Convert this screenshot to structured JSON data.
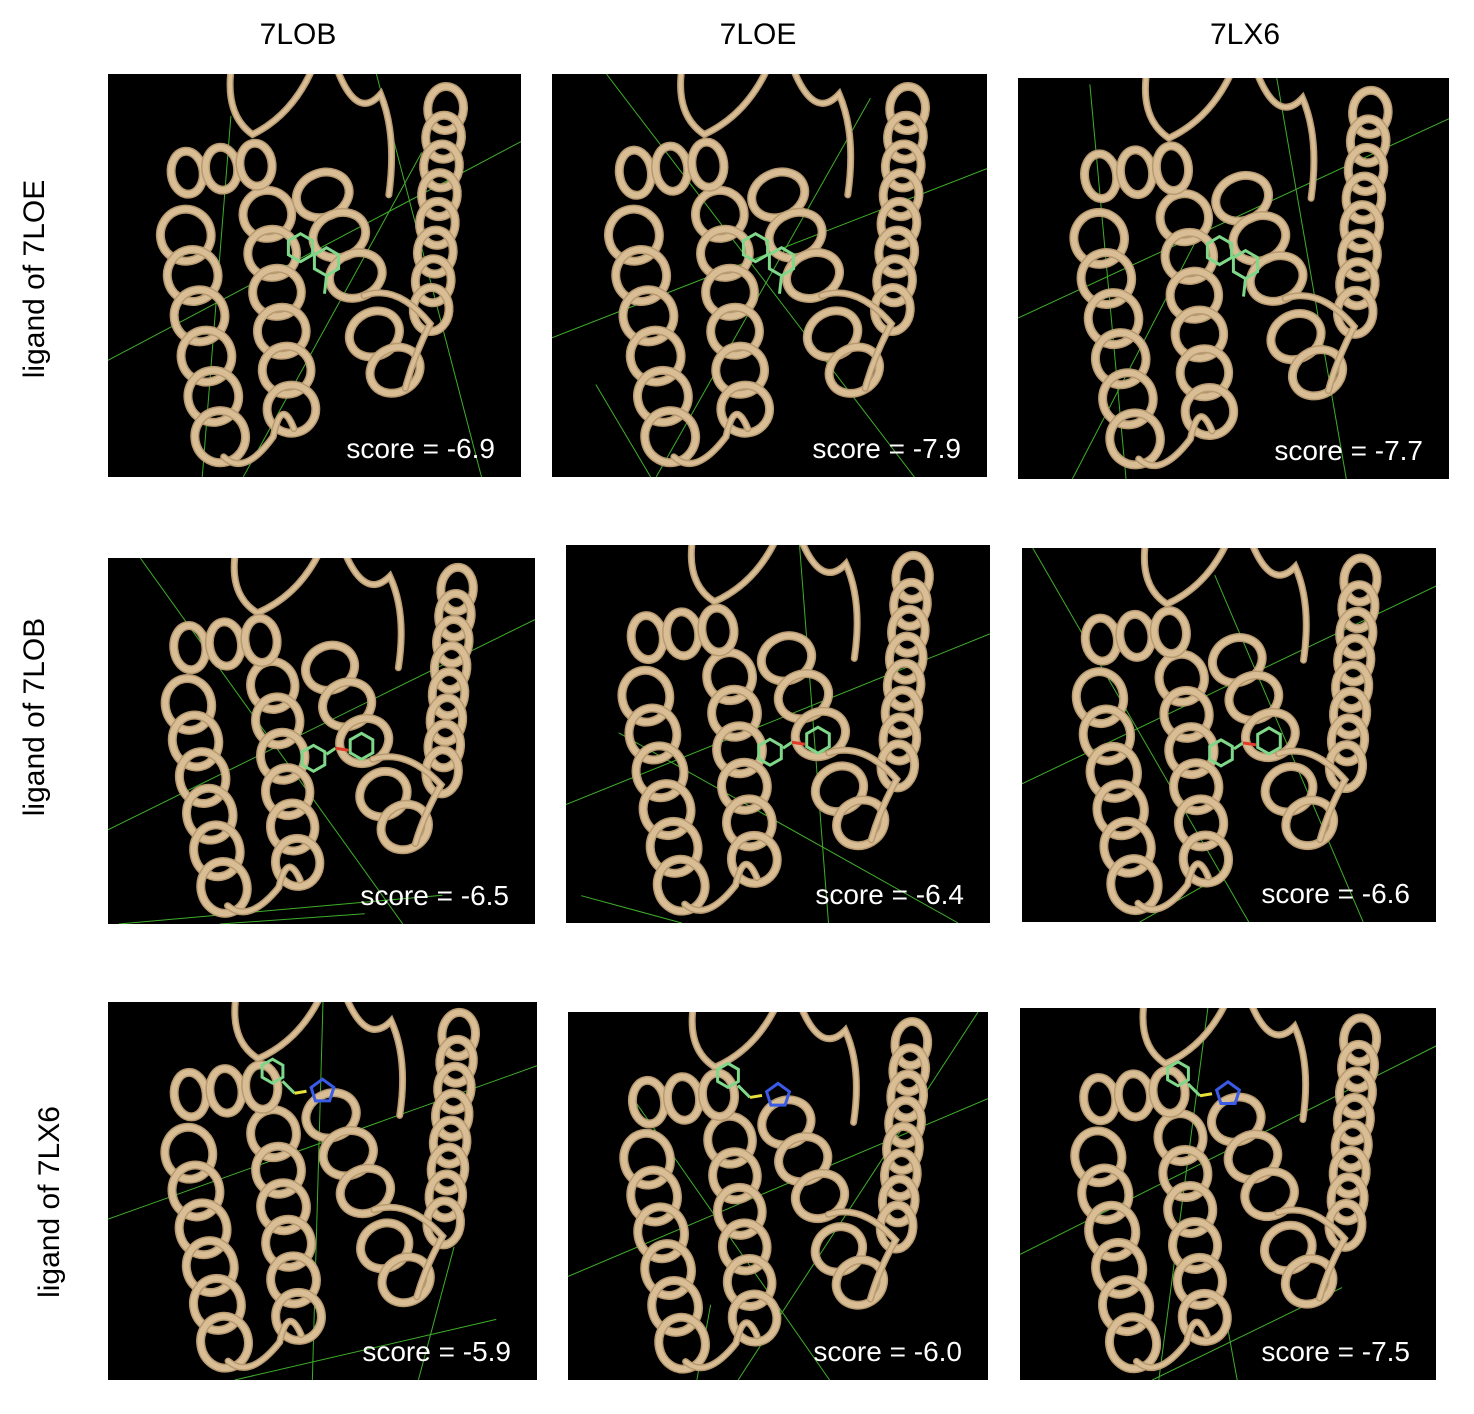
{
  "columns": [
    "7LOB",
    "7LOE",
    "7LX6"
  ],
  "rows": [
    "ligand of 7LOE",
    "ligand of 7LOB",
    "ligand of 7LX6"
  ],
  "colors": {
    "ribbon": "#d8bd95",
    "ribbon_shade": "#b89a70",
    "ligand": "#7fd88a",
    "grid": "#3fae2a",
    "oxygen": "#e23a2a",
    "nitrogen": "#3a5ae8",
    "sulfur": "#e8e23a"
  },
  "panels": [
    [
      {
        "score": "score = -6.9",
        "ligand": "ring-pair"
      },
      {
        "score": "score = -7.9",
        "ligand": "ring-pair"
      },
      {
        "score": "score = -7.7",
        "ligand": "ring-pair"
      }
    ],
    [
      {
        "score": "score = -6.5",
        "ligand": "ether"
      },
      {
        "score": "score = -6.4",
        "ligand": "ether"
      },
      {
        "score": "score = -6.6",
        "ligand": "ether"
      }
    ],
    [
      {
        "score": "score = -5.9",
        "ligand": "triazole"
      },
      {
        "score": "score = -6.0",
        "ligand": "triazole"
      },
      {
        "score": "score = -7.5",
        "ligand": "triazole"
      }
    ]
  ]
}
